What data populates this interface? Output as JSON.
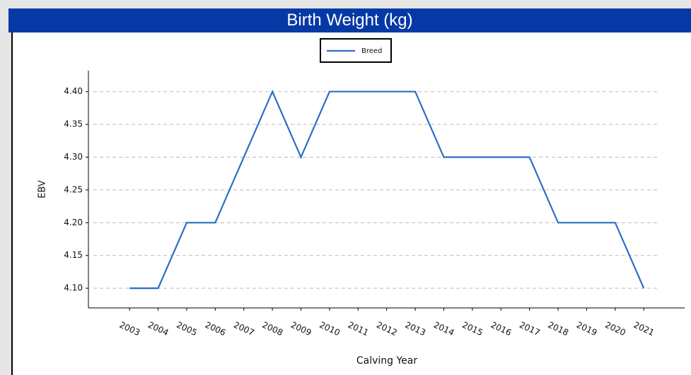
{
  "chart_data": {
    "type": "line",
    "title": "Birth Weight (kg)",
    "x_label": "Calving Year",
    "y_label": "EBV",
    "x": [
      2003,
      2004,
      2005,
      2006,
      2007,
      2008,
      2009,
      2010,
      2011,
      2012,
      2013,
      2014,
      2015,
      2016,
      2017,
      2018,
      2019,
      2020,
      2021
    ],
    "series": [
      {
        "name": "Breed",
        "color": "#2a6ec6",
        "values": [
          4.1,
          4.1,
          4.2,
          4.2,
          4.3,
          4.4,
          4.3,
          4.4,
          4.4,
          4.4,
          4.4,
          4.3,
          4.3,
          4.3,
          4.3,
          4.2,
          4.2,
          4.2,
          4.1
        ]
      }
    ],
    "xlim": [
      2001.56,
      2022.43
    ],
    "xticks": [
      2003,
      2004,
      2005,
      2006,
      2007,
      2008,
      2009,
      2010,
      2011,
      2012,
      2013,
      2014,
      2015,
      2016,
      2017,
      2018,
      2019,
      2020,
      2021
    ],
    "ylim": [
      4.07,
      4.432
    ],
    "yticks": [
      {
        "value": 4.1,
        "label": "4.10"
      },
      {
        "value": 4.15,
        "label": "4.15"
      },
      {
        "value": 4.2,
        "label": "4.20"
      },
      {
        "value": 4.25,
        "label": "4.25"
      },
      {
        "value": 4.3,
        "label": "4.30"
      },
      {
        "value": 4.35,
        "label": "4.35"
      },
      {
        "value": 4.4,
        "label": "4.40"
      }
    ],
    "grid": true,
    "legend": "top"
  }
}
